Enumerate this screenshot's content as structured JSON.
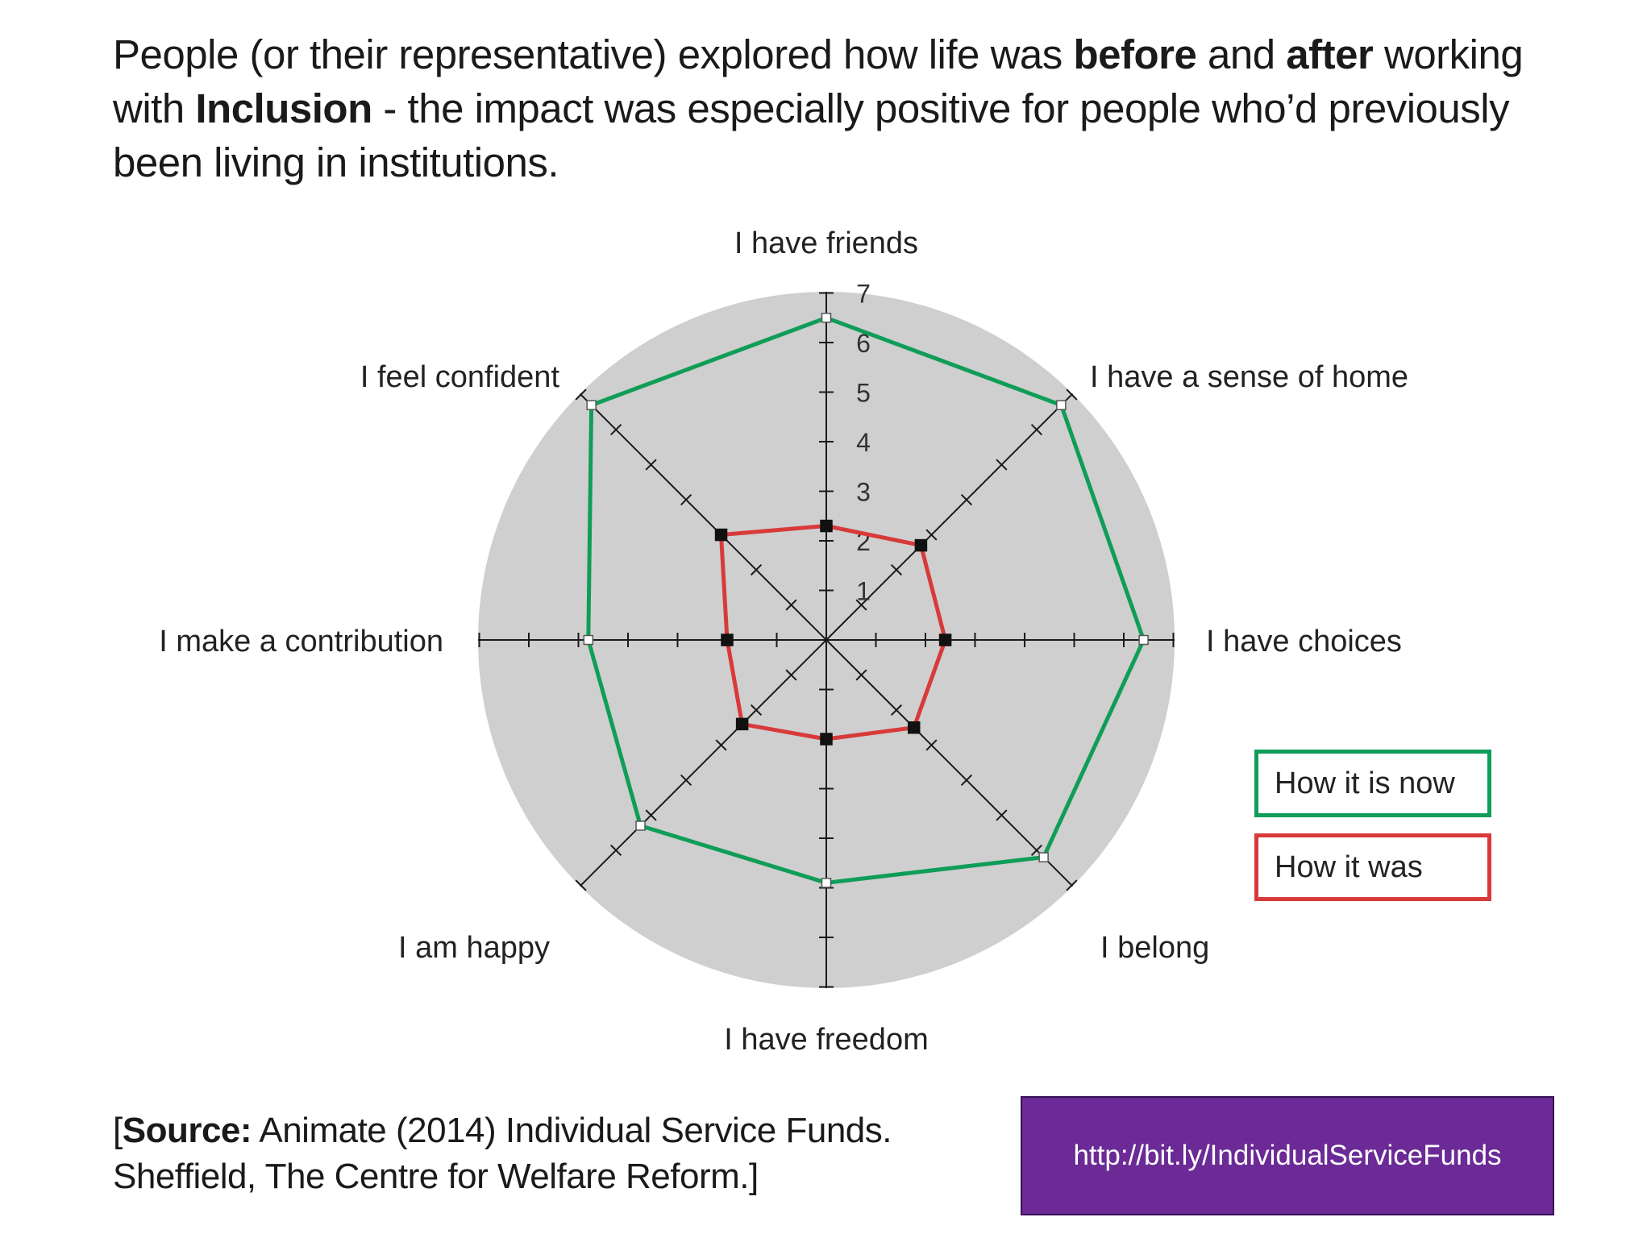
{
  "headline": {
    "part1": "People (or their representative) explored how life was ",
    "bold1": "before",
    "part2": " and ",
    "bold2": "after",
    "part3": " working with ",
    "bold3": "Inclusion",
    "part4": " - the impact was especially positive for people who’d previously been living in institutions."
  },
  "chart_data": {
    "type": "radar",
    "axes": [
      "I have friends",
      "I have a sense of home",
      "I have choices",
      "I belong",
      "I have freedom",
      "I am happy",
      "I make a contribution",
      "I feel confident"
    ],
    "r_range": [
      0,
      7
    ],
    "tick_labels": [
      "1",
      "2",
      "3",
      "4",
      "5",
      "6",
      "7"
    ],
    "grid": false,
    "legend_position": "right",
    "series": [
      {
        "name": "How it is now",
        "color": "#0f9d58",
        "values": [
          6.5,
          6.7,
          6.4,
          6.2,
          4.9,
          5.3,
          4.8,
          6.7
        ]
      },
      {
        "name": "How it was",
        "color": "#d83a3a",
        "values": [
          2.3,
          2.7,
          2.4,
          2.5,
          2.0,
          2.4,
          2.0,
          3.0
        ]
      }
    ],
    "background_color": "#cfcfcf"
  },
  "legend": {
    "now": "How it is now",
    "was": "How it was"
  },
  "source": {
    "bracket_open": "[",
    "bold": "Source:",
    "text": " Animate (2014) Individual Service Funds. Sheffield, The Centre for Welfare Reform.]"
  },
  "link": "http://bit.ly/IndividualServiceFunds"
}
